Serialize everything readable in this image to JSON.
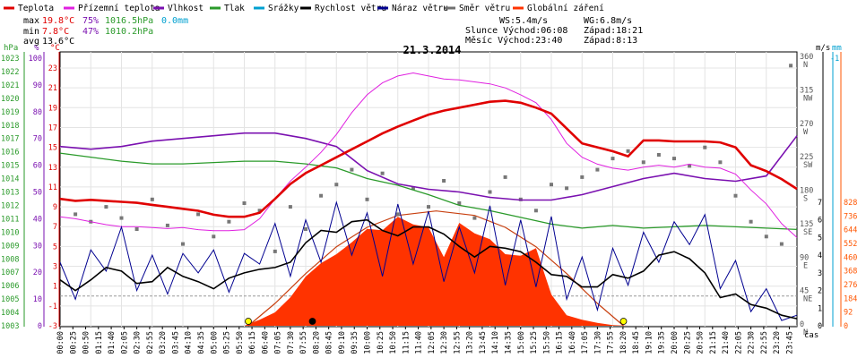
{
  "chart_data": {
    "type": "line",
    "title": "21.3.2014",
    "legend": [
      {
        "name": "Teplota",
        "color": "#e00000"
      },
      {
        "name": "Přízemní teplota",
        "color": "#e020e0"
      },
      {
        "name": "Vlhkost",
        "color": "#7a10b0"
      },
      {
        "name": "Tlak",
        "color": "#2a9a2a"
      },
      {
        "name": "Srážky",
        "color": "#00a0d0"
      },
      {
        "name": "Rychlost větru",
        "color": "#000000"
      },
      {
        "name": "Náraz větru",
        "color": "#000090"
      },
      {
        "name": "Směr větru",
        "color": "#707070"
      },
      {
        "name": "Globální záření",
        "color": "#ff3300"
      }
    ],
    "stats": {
      "max": {
        "label": "max",
        "temp": "19.8°C",
        "hum": "75%",
        "press": "1016.5hPa",
        "rain": "0.0mm"
      },
      "min": {
        "label": "min",
        "temp": "7.8°C",
        "hum": "47%",
        "press": "1010.2hPa"
      },
      "avg": {
        "label": "avg",
        "temp": "13.6°C"
      }
    },
    "info": {
      "ws": "WS:5.4m/s",
      "wg": "WG:6.8m/s",
      "sun_rise": "Slunce Východ:06:08",
      "sun_set": "Západ:18:21",
      "moon_rise": "Měsíc Východ:23:40",
      "moon_set": "Západ:8:13"
    },
    "axes": {
      "hpa": {
        "label": "hPa",
        "ticks": [
          "1003",
          "1004",
          "1005",
          "1006",
          "1007",
          "1008",
          "1009",
          "1010",
          "1011",
          "1012",
          "1013",
          "1014",
          "1015",
          "1016",
          "1017",
          "1018",
          "1019",
          "1020",
          "1021",
          "1022",
          "1023"
        ]
      },
      "pct": {
        "label": "%",
        "ticks": [
          "0",
          "10",
          "20",
          "30",
          "40",
          "50",
          "60",
          "70",
          "80",
          "90",
          "100"
        ]
      },
      "temp": {
        "label": "°C",
        "ticks": [
          "-3",
          "-1",
          "1",
          "3",
          "5",
          "7",
          "9",
          "11",
          "13",
          "15",
          "17",
          "19",
          "21",
          "23"
        ]
      },
      "ms": {
        "label": "m/s",
        "ticks": [
          "0",
          "1",
          "2",
          "3",
          "4",
          "5",
          "6",
          "7"
        ]
      },
      "mm": {
        "label": "mm",
        "ticks": [
          "-1"
        ]
      },
      "dir": {
        "ticks": [
          "0 N",
          "45 NE",
          "90 E",
          "135 SE",
          "180 S",
          "225 SW",
          "270 W",
          "315 NW",
          "360 N"
        ]
      },
      "rad": {
        "ticks": [
          "0",
          "92",
          "184",
          "276",
          "368",
          "460",
          "552",
          "644",
          "736",
          "828"
        ]
      },
      "x_label": "čas",
      "x_ticks": [
        "00:00",
        "00:25",
        "00:50",
        "01:15",
        "01:40",
        "02:05",
        "02:30",
        "02:55",
        "03:20",
        "03:45",
        "04:10",
        "04:35",
        "05:00",
        "05:25",
        "05:50",
        "06:15",
        "06:40",
        "07:05",
        "07:30",
        "07:55",
        "08:20",
        "08:45",
        "09:10",
        "09:35",
        "10:00",
        "10:25",
        "10:50",
        "11:15",
        "11:40",
        "12:05",
        "12:30",
        "12:55",
        "13:20",
        "13:45",
        "14:10",
        "14:35",
        "15:00",
        "15:25",
        "15:50",
        "16:15",
        "16:40",
        "17:05",
        "17:30",
        "17:55",
        "18:20",
        "18:45",
        "19:10",
        "19:35",
        "20:00",
        "20:25",
        "20:50",
        "21:15",
        "21:40",
        "22:05",
        "22:30",
        "22:55",
        "23:20",
        "23:45"
      ]
    },
    "series": {
      "temperature": {
        "name": "Teplota",
        "unit": "°C",
        "x_hours": [
          0,
          0.5,
          1,
          1.5,
          2,
          2.5,
          3,
          3.5,
          4,
          4.5,
          5,
          5.5,
          6,
          6.5,
          7,
          7.5,
          8,
          8.5,
          9,
          9.5,
          10,
          10.5,
          11,
          11.5,
          12,
          12.5,
          13,
          13.5,
          14,
          14.5,
          15,
          15.5,
          16,
          16.5,
          17,
          17.5,
          18,
          18.5,
          19,
          19.5,
          20,
          20.5,
          21,
          21.5,
          22,
          22.5,
          23,
          23.5,
          24
        ],
        "values": [
          9.8,
          9.6,
          9.7,
          9.6,
          9.5,
          9.4,
          9.2,
          9.0,
          8.8,
          8.6,
          8.2,
          8.0,
          8.0,
          8.4,
          9.8,
          11.3,
          12.4,
          13.2,
          14.0,
          14.8,
          15.6,
          16.4,
          17.1,
          17.7,
          18.3,
          18.7,
          19.0,
          19.3,
          19.6,
          19.7,
          19.5,
          19.0,
          18.4,
          16.9,
          15.4,
          15.0,
          14.6,
          14.1,
          15.7,
          15.7,
          15.6,
          15.6,
          15.6,
          15.5,
          15.0,
          13.2,
          12.6,
          11.8,
          10.8
        ]
      },
      "ground_temperature": {
        "name": "Přízemní teplota",
        "unit": "°C",
        "x_hours": [
          0,
          0.5,
          1,
          1.5,
          2,
          2.5,
          3,
          3.5,
          4,
          4.5,
          5,
          5.5,
          6,
          6.5,
          7,
          7.5,
          8,
          8.5,
          9,
          9.5,
          10,
          10.5,
          11,
          11.5,
          12,
          12.5,
          13,
          13.5,
          14,
          14.5,
          15,
          15.5,
          16,
          16.5,
          17,
          17.5,
          18,
          18.5,
          19,
          19.5,
          20,
          20.5,
          21,
          21.5,
          22,
          22.5,
          23,
          23.5,
          24
        ],
        "values": [
          8.0,
          7.8,
          7.5,
          7.2,
          7.0,
          7.0,
          6.9,
          6.8,
          6.9,
          6.7,
          6.6,
          6.6,
          6.7,
          7.8,
          9.8,
          11.6,
          13.0,
          14.5,
          16.3,
          18.5,
          20.3,
          21.5,
          22.2,
          22.5,
          22.2,
          21.9,
          21.8,
          21.6,
          21.4,
          21.0,
          20.3,
          19.5,
          17.8,
          15.4,
          14.0,
          13.3,
          12.9,
          12.7,
          13.0,
          13.2,
          13.0,
          13.3,
          13.0,
          12.9,
          12.3,
          10.7,
          9.3,
          7.3,
          5.9
        ]
      },
      "humidity": {
        "name": "Vlhkost",
        "unit": "%",
        "x_hours": [
          0,
          1,
          2,
          3,
          4,
          5,
          6,
          7,
          8,
          9,
          10,
          11,
          12,
          13,
          14,
          15,
          16,
          17,
          18,
          19,
          20,
          21,
          22,
          23,
          24
        ],
        "values": [
          67,
          66,
          67,
          69,
          70,
          71,
          72,
          72,
          70,
          67,
          58,
          53,
          51,
          50,
          48,
          47,
          47,
          49,
          52,
          55,
          57,
          55,
          54,
          56,
          71
        ]
      },
      "pressure": {
        "name": "Tlak",
        "unit": "hPa",
        "x_hours": [
          0,
          1,
          2,
          3,
          4,
          5,
          6,
          7,
          8,
          9,
          10,
          11,
          12,
          13,
          14,
          15,
          16,
          17,
          18,
          19,
          20,
          21,
          22,
          23,
          24
        ],
        "values": [
          1015.9,
          1015.6,
          1015.3,
          1015.1,
          1015.1,
          1015.2,
          1015.3,
          1015.3,
          1015.1,
          1014.8,
          1014.0,
          1013.5,
          1012.8,
          1012.0,
          1011.6,
          1011.1,
          1010.6,
          1010.3,
          1010.5,
          1010.3,
          1010.4,
          1010.5,
          1010.4,
          1010.3,
          1010.2
        ]
      },
      "wind_speed": {
        "name": "Rychlost větru",
        "unit": "m/s",
        "x_hours": [
          0,
          0.5,
          1,
          1.5,
          2,
          2.5,
          3,
          3.5,
          4,
          4.5,
          5,
          5.5,
          6,
          6.5,
          7,
          7.5,
          8,
          8.5,
          9,
          9.5,
          10,
          10.5,
          11,
          11.5,
          12,
          12.5,
          13,
          13.5,
          14,
          14.5,
          15,
          15.5,
          16,
          16.5,
          17,
          17.5,
          18,
          18.5,
          19,
          19.5,
          20,
          20.5,
          21,
          21.5,
          22,
          22.5,
          23,
          23.5,
          24
        ],
        "values": [
          2.6,
          2.0,
          2.6,
          3.3,
          3.1,
          2.4,
          2.5,
          3.3,
          2.8,
          2.5,
          2.1,
          2.7,
          3.0,
          3.2,
          3.3,
          3.6,
          4.7,
          5.4,
          5.3,
          5.9,
          6.0,
          5.4,
          5.1,
          5.6,
          5.6,
          5.2,
          4.5,
          3.9,
          4.5,
          4.4,
          4.2,
          3.6,
          2.9,
          2.8,
          2.2,
          2.2,
          2.9,
          2.7,
          3.1,
          4.0,
          4.2,
          3.8,
          3.0,
          1.6,
          1.8,
          1.2,
          1.0,
          0.6,
          0.4
        ]
      },
      "wind_gust": {
        "name": "Náraz větru",
        "unit": "m/s",
        "x_hours": [
          0,
          0.5,
          1,
          1.5,
          2,
          2.5,
          3,
          3.5,
          4,
          4.5,
          5,
          5.5,
          6,
          6.5,
          7,
          7.5,
          8,
          8.5,
          9,
          9.5,
          10,
          10.5,
          11,
          11.5,
          12,
          12.5,
          13,
          13.5,
          14,
          14.5,
          15,
          15.5,
          16,
          16.5,
          17,
          17.5,
          18,
          18.5,
          19,
          19.5,
          20,
          20.5,
          21,
          21.5,
          22,
          22.5,
          23,
          23.5,
          24
        ],
        "values": [
          3.6,
          1.5,
          4.3,
          3.1,
          5.6,
          2.0,
          4.0,
          1.8,
          4.1,
          3.0,
          4.3,
          1.9,
          4.1,
          3.5,
          5.8,
          2.8,
          6.0,
          3.6,
          7.0,
          4.0,
          6.4,
          2.8,
          6.9,
          3.5,
          6.5,
          2.5,
          5.6,
          3.0,
          6.8,
          2.3,
          6.0,
          2.2,
          6.2,
          1.5,
          3.9,
          0.9,
          4.4,
          2.3,
          5.3,
          3.6,
          5.9,
          4.6,
          6.3,
          2.1,
          3.7,
          0.8,
          2.1,
          0.3,
          0.6
        ]
      },
      "wind_direction": {
        "name": "Směr větru",
        "unit": "°",
        "x_hours": [
          0.5,
          1.0,
          1.5,
          2.0,
          2.5,
          3.0,
          3.5,
          4.0,
          4.5,
          5.0,
          5.5,
          6.0,
          6.5,
          7.0,
          7.5,
          8.0,
          8.5,
          9.0,
          9.5,
          10.0,
          10.5,
          11.0,
          11.5,
          12.0,
          12.5,
          13.0,
          13.5,
          14.0,
          14.5,
          15.0,
          15.5,
          16.0,
          16.5,
          17.0,
          17.5,
          18.0,
          18.5,
          19.0,
          19.5,
          20.0,
          20.5,
          21.0,
          21.5,
          22.0,
          22.5,
          23.0,
          23.5,
          23.8
        ],
        "values": [
          150,
          140,
          160,
          145,
          130,
          170,
          135,
          110,
          150,
          120,
          140,
          165,
          155,
          100,
          160,
          130,
          175,
          190,
          210,
          170,
          205,
          150,
          185,
          160,
          195,
          165,
          145,
          180,
          200,
          170,
          155,
          190,
          185,
          200,
          210,
          225,
          235,
          220,
          230,
          225,
          215,
          240,
          220,
          175,
          140,
          120,
          110,
          350
        ]
      },
      "solar_radiation": {
        "name": "Globální záření",
        "unit": "W/m²",
        "x_hours": [
          6.0,
          6.5,
          7.0,
          7.5,
          8.0,
          8.5,
          9.0,
          9.5,
          10.0,
          10.5,
          11.0,
          11.5,
          12.0,
          12.5,
          13.0,
          13.5,
          14.0,
          14.5,
          15.0,
          15.5,
          16.0,
          16.5,
          17.0,
          17.5,
          18.0,
          18.5
        ],
        "values": [
          0,
          40,
          90,
          190,
          330,
          420,
          480,
          560,
          650,
          640,
          730,
          680,
          660,
          460,
          690,
          620,
          580,
          480,
          470,
          520,
          210,
          70,
          40,
          20,
          5,
          0
        ]
      },
      "theoretical_radiation": {
        "name": "",
        "unit": "W/m²",
        "x_hours": [
          6.13,
          7,
          8,
          9,
          10,
          11,
          12.25,
          13.5,
          14.5,
          15.5,
          16.5,
          17.5,
          18.35
        ],
        "values": [
          0,
          150,
          350,
          530,
          660,
          740,
          770,
          740,
          660,
          530,
          350,
          150,
          0
        ]
      }
    },
    "markers": [
      {
        "type": "sunrise",
        "x_hour": 6.13,
        "color": "#ffff00"
      },
      {
        "type": "sunset",
        "x_hour": 18.35,
        "color": "#ffff00"
      },
      {
        "type": "moonset",
        "x_hour": 8.22,
        "color": "#000000"
      }
    ]
  }
}
